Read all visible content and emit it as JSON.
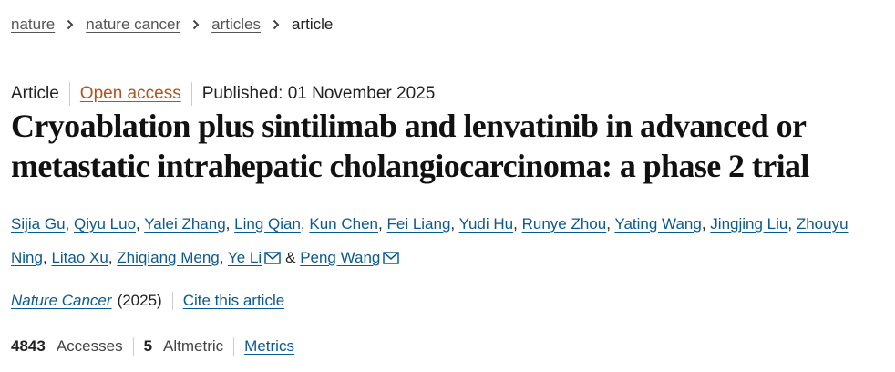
{
  "breadcrumb": [
    "nature",
    "nature cancer",
    "articles",
    "article"
  ],
  "meta": {
    "type": "Article",
    "access": "Open access",
    "published": "Published: 01 November 2025"
  },
  "title": "Cryoablation plus sintilimab and lenvatinib in advanced or metastatic intrahepatic cholangiocarcinoma: a phase 2 trial",
  "authors": [
    {
      "name": "Sijia Gu"
    },
    {
      "name": "Qiyu Luo"
    },
    {
      "name": "Yalei Zhang"
    },
    {
      "name": "Ling Qian"
    },
    {
      "name": "Kun Chen"
    },
    {
      "name": "Fei Liang"
    },
    {
      "name": "Yudi Hu"
    },
    {
      "name": "Runye Zhou"
    },
    {
      "name": "Yating Wang"
    },
    {
      "name": "Jingjing Liu"
    },
    {
      "name": "Zhouyu Ning"
    },
    {
      "name": "Litao Xu"
    },
    {
      "name": "Zhiqiang Meng"
    },
    {
      "name": "Ye Li",
      "corresponding": true
    },
    {
      "name": "Peng Wang",
      "corresponding": true
    }
  ],
  "separator": ",",
  "conjunction": "&",
  "journal": {
    "name": "Nature Cancer",
    "year": "(2025)",
    "cite": "Cite this article"
  },
  "metrics": {
    "accesses": 4843,
    "accesses_label": "Accesses",
    "altmetric": 5,
    "altmetric_label": "Altmetric",
    "link": "Metrics"
  }
}
